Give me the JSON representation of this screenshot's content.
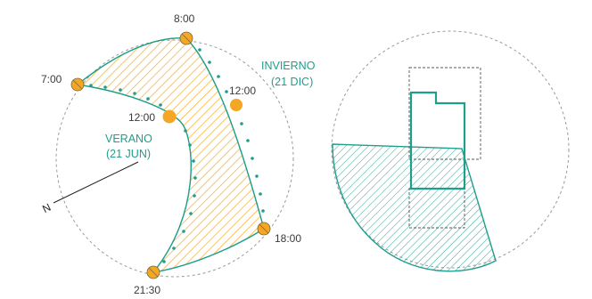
{
  "left_diagram": {
    "north_label": "N",
    "summer": {
      "name": "VERANO",
      "date": "(21 JUN)"
    },
    "winter": {
      "name": "INVIERNO",
      "date": "(21 DIC)"
    },
    "time_labels": {
      "t0700": "7:00",
      "t0800": "8:00",
      "t1200_summer": "12:00",
      "t1200_winter": "12:00",
      "t1800": "18:00",
      "t2130": "21:30"
    }
  },
  "colors": {
    "accent_teal": "#1f9e8c",
    "sun_orange": "#f5a623",
    "hatch_orange": "#f5b63c",
    "circle_gray": "#9a9a9a"
  }
}
